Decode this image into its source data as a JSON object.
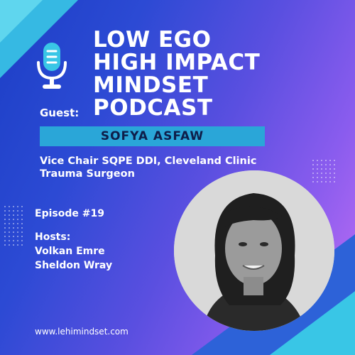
{
  "podcast": {
    "title_lines": [
      "LOW EGO",
      "HIGH IMPACT",
      "MINDSET",
      "PODCAST"
    ]
  },
  "guest": {
    "label": "Guest:",
    "name": "SOFYA ASFAW",
    "role_lines": [
      "Vice Chair SQPE DDI, Cleveland Clinic",
      "Trauma Surgeon"
    ]
  },
  "episode": "Episode #19",
  "hosts": {
    "label": "Hosts:",
    "names": [
      "Volkan Emre",
      "Sheldon Wray"
    ]
  },
  "website": "www.lehimindset.com",
  "icons": {
    "microphone": "microphone-icon"
  },
  "colors": {
    "accent_cyan": "#39c6e6",
    "name_band": "#2aa6d8",
    "gradient_start": "#1c3fc6",
    "gradient_end": "#c26ff4"
  }
}
